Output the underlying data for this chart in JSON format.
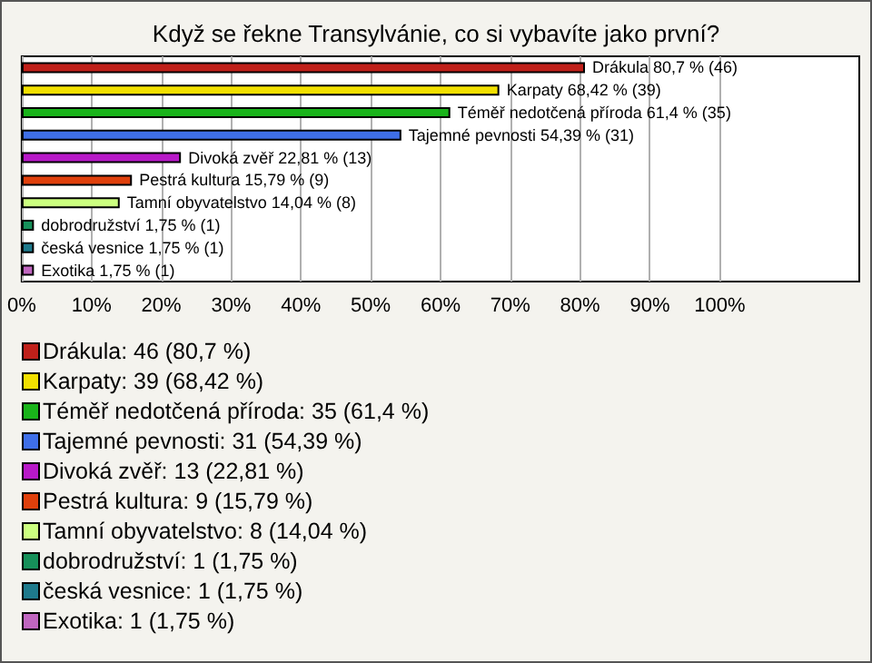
{
  "chart_data": {
    "type": "bar",
    "orientation": "horizontal",
    "stacked": true,
    "title": "Když se řekne Transylvánie, co si vybavíte jako první?",
    "categories": [
      null,
      null,
      null,
      null,
      null,
      null,
      null,
      null,
      null,
      null
    ],
    "series": [
      {
        "name": "Drákula: 46 (80,7 %)",
        "color": "#c0201a",
        "values": [
          80.7,
          null,
          null,
          null,
          null,
          null,
          null,
          null,
          null,
          null
        ],
        "value_labels": [
          "Drákula 80,7 % (46)",
          null,
          null,
          null,
          null,
          null,
          null,
          null,
          null,
          null
        ]
      },
      {
        "name": "Karpaty: 39 (68,42 %)",
        "color": "#f2e000",
        "values": [
          null,
          68.42,
          null,
          null,
          null,
          null,
          null,
          null,
          null,
          null
        ],
        "value_labels": [
          null,
          "Karpaty 68,42 % (39)",
          null,
          null,
          null,
          null,
          null,
          null,
          null,
          null
        ]
      },
      {
        "name": "Téměř nedotčená příroda: 35 (61,4 %)",
        "color": "#19b41a",
        "values": [
          null,
          null,
          61.4,
          null,
          null,
          null,
          null,
          null,
          null,
          null
        ],
        "value_labels": [
          null,
          null,
          "Téměř nedotčená příroda 61,4 % (35)",
          null,
          null,
          null,
          null,
          null,
          null,
          null
        ]
      },
      {
        "name": "Tajemné pevnosti: 31 (54,39 %)",
        "color": "#3f6fe8",
        "values": [
          null,
          null,
          null,
          54.39,
          null,
          null,
          null,
          null,
          null,
          null
        ],
        "value_labels": [
          null,
          null,
          null,
          "Tajemné pevnosti 54,39 % (31)",
          null,
          null,
          null,
          null,
          null,
          null
        ]
      },
      {
        "name": "Divoká zvěř: 13 (22,81 %)",
        "color": "#b819c8",
        "values": [
          null,
          null,
          null,
          null,
          22.81,
          null,
          null,
          null,
          null,
          null
        ],
        "value_labels": [
          null,
          null,
          null,
          null,
          "Divoká zvěř 22,81 % (13)",
          null,
          null,
          null,
          null,
          null
        ]
      },
      {
        "name": "Pestrá kultura: 9 (15,79 %)",
        "color": "#e0400c",
        "values": [
          null,
          null,
          null,
          null,
          null,
          15.79,
          null,
          null,
          null,
          null
        ],
        "value_labels": [
          null,
          null,
          null,
          null,
          null,
          "Pestrá kultura 15,79 % (9)",
          null,
          null,
          null,
          null
        ]
      },
      {
        "name": "Tamní obyvatelstvo: 8 (14,04 %)",
        "color": "#ccff80",
        "values": [
          null,
          null,
          null,
          null,
          null,
          null,
          14.04,
          null,
          null,
          null
        ],
        "value_labels": [
          null,
          null,
          null,
          null,
          null,
          null,
          "Tamní obyvatelstvo 14,04 % (8)",
          null,
          null,
          null
        ]
      },
      {
        "name": "dobrodružství: 1 (1,75 %)",
        "color": "#16905a",
        "values": [
          null,
          null,
          null,
          null,
          null,
          null,
          null,
          1.75,
          null,
          null
        ],
        "value_labels": [
          null,
          null,
          null,
          null,
          null,
          null,
          null,
          "dobrodružství 1,75 % (1)",
          null,
          null
        ]
      },
      {
        "name": "česká vesnice: 1 (1,75 %)",
        "color": "#1e7a8c",
        "values": [
          null,
          null,
          null,
          null,
          null,
          null,
          null,
          null,
          1.75,
          null
        ],
        "value_labels": [
          null,
          null,
          null,
          null,
          null,
          null,
          null,
          null,
          "česká vesnice 1,75 % (1)",
          null
        ]
      },
      {
        "name": "Exotika: 1 (1,75 %)",
        "color": "#c066c0",
        "values": [
          null,
          null,
          null,
          null,
          null,
          null,
          null,
          null,
          null,
          1.75
        ],
        "value_labels": [
          null,
          null,
          null,
          null,
          null,
          null,
          null,
          null,
          null,
          "Exotika 1,75 % (1)"
        ]
      }
    ],
    "xlim": [
      0,
      120
    ],
    "xticks": [
      {
        "value": 0,
        "label": "0%"
      },
      {
        "value": 10,
        "label": "10%"
      },
      {
        "value": 20,
        "label": "20%"
      },
      {
        "value": 30,
        "label": "30%"
      },
      {
        "value": 40,
        "label": "40%"
      },
      {
        "value": 50,
        "label": "50%"
      },
      {
        "value": 60,
        "label": "60%"
      },
      {
        "value": 70,
        "label": "70%"
      },
      {
        "value": 80,
        "label": "80%"
      },
      {
        "value": 90,
        "label": "90%"
      },
      {
        "value": 100,
        "label": "100%"
      }
    ],
    "grid": "x",
    "legend": "bottom"
  }
}
